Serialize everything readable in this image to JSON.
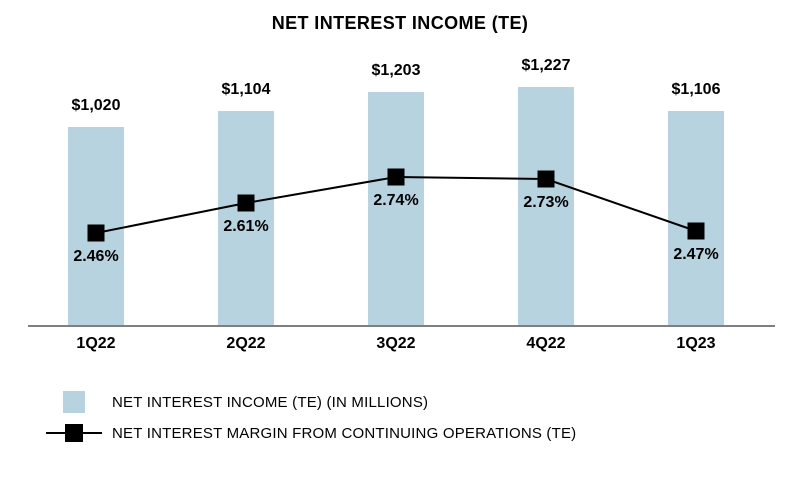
{
  "chart_data": {
    "type": "bar+line",
    "title": "NET INTEREST INCOME (TE)",
    "categories": [
      "1Q22",
      "2Q22",
      "3Q22",
      "4Q22",
      "1Q23"
    ],
    "series": [
      {
        "name": "NET INTEREST INCOME (TE) (IN MILLIONS)",
        "type": "bar",
        "values": [
          1020,
          1104,
          1203,
          1227,
          1106
        ],
        "labels": [
          "$1,020",
          "$1,104",
          "$1,203",
          "$1,227",
          "$1,106"
        ],
        "color": "#b8d3e0"
      },
      {
        "name": "NET INTEREST MARGIN FROM CONTINUING OPERATIONS (TE)",
        "type": "line",
        "values": [
          2.46,
          2.61,
          2.74,
          2.73,
          2.47
        ],
        "labels": [
          "2.46%",
          "2.61%",
          "2.74%",
          "2.73%",
          "2.47%"
        ],
        "color": "#000000"
      }
    ],
    "bar_ylim": [
      0,
      1300
    ],
    "line_ylim": [
      2.0,
      3.0
    ],
    "grid": false,
    "legend_position": "bottom-left"
  }
}
